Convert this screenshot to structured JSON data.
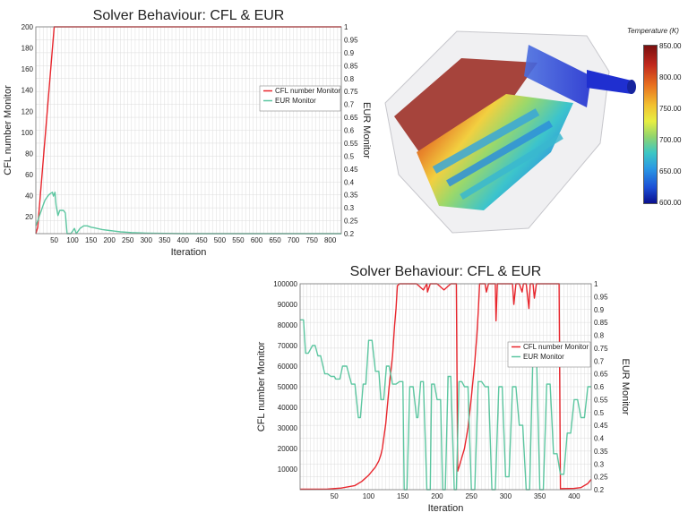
{
  "chart_data": [
    {
      "type": "line",
      "title": "Solver Behaviour: CFL & EUR",
      "xlabel": "Iteration",
      "ylabel": "CFL number Monitor",
      "y2label": "EUR Monitor",
      "xlim": [
        0,
        830
      ],
      "ylim": [
        4,
        200
      ],
      "y2lim": [
        0.2,
        1.0
      ],
      "xticks": [
        "50",
        "100",
        "150",
        "200",
        "250",
        "300",
        "350",
        "400",
        "450",
        "500",
        "550",
        "600",
        "650",
        "700",
        "750",
        "800"
      ],
      "xtick_values": [
        50,
        100,
        150,
        200,
        250,
        300,
        350,
        400,
        450,
        500,
        550,
        600,
        650,
        700,
        750,
        800
      ],
      "yticks": [
        "20",
        "40",
        "60",
        "80",
        "100",
        "120",
        "140",
        "160",
        "180",
        "200"
      ],
      "ytick_values": [
        20,
        40,
        60,
        80,
        100,
        120,
        140,
        160,
        180,
        200
      ],
      "y2ticks": [
        "0.2",
        "0.25",
        "0.3",
        "0.35",
        "0.4",
        "0.45",
        "0.5",
        "0.55",
        "0.6",
        "0.65",
        "0.7",
        "0.75",
        "0.8",
        "0.85",
        "0.9",
        "0.95",
        "1"
      ],
      "y2tick_values": [
        0.2,
        0.25,
        0.3,
        0.35,
        0.4,
        0.45,
        0.5,
        0.55,
        0.6,
        0.65,
        0.7,
        0.75,
        0.8,
        0.85,
        0.9,
        0.95,
        1.0
      ],
      "grid": true,
      "legend_position": "right",
      "series": [
        {
          "name": "CFL number Monitor",
          "axis": "left",
          "color": "#e8262d",
          "x": [
            0,
            5,
            50,
            830
          ],
          "y": [
            4,
            10,
            200,
            200
          ]
        },
        {
          "name": "EUR Monitor",
          "axis": "right",
          "color": "#5cc6a0",
          "x": [
            0,
            5,
            10,
            15,
            20,
            25,
            30,
            35,
            40,
            45,
            48,
            52,
            55,
            60,
            65,
            75,
            80,
            85,
            90,
            95,
            100,
            105,
            110,
            120,
            130,
            140,
            150,
            160,
            180,
            200,
            230,
            260,
            300,
            400,
            500,
            600,
            700,
            830
          ],
          "y": [
            0.23,
            0.25,
            0.27,
            0.29,
            0.31,
            0.33,
            0.34,
            0.35,
            0.355,
            0.36,
            0.345,
            0.36,
            0.31,
            0.27,
            0.29,
            0.29,
            0.28,
            0.2,
            0.2,
            0.2,
            0.21,
            0.22,
            0.2,
            0.22,
            0.23,
            0.23,
            0.225,
            0.222,
            0.216,
            0.212,
            0.207,
            0.204,
            0.202,
            0.2,
            0.2,
            0.2,
            0.2,
            0.2
          ]
        }
      ]
    },
    {
      "type": "line",
      "title": "Solver Behaviour: CFL & EUR",
      "xlabel": "Iteration",
      "ylabel": "CFL number Monitor",
      "y2label": "EUR Monitor",
      "xlim": [
        0,
        425
      ],
      "ylim": [
        0,
        100000
      ],
      "y2lim": [
        0.2,
        1.0
      ],
      "xticks": [
        "50",
        "100",
        "150",
        "200",
        "250",
        "300",
        "350",
        "400"
      ],
      "xtick_values": [
        50,
        100,
        150,
        200,
        250,
        300,
        350,
        400
      ],
      "yticks": [
        "10000",
        "20000",
        "30000",
        "40000",
        "50000",
        "60000",
        "70000",
        "80000",
        "90000",
        "100000"
      ],
      "ytick_values": [
        10000,
        20000,
        30000,
        40000,
        50000,
        60000,
        70000,
        80000,
        90000,
        100000
      ],
      "y2ticks": [
        "0.2",
        "0.25",
        "0.3",
        "0.35",
        "0.4",
        "0.45",
        "0.5",
        "0.55",
        "0.6",
        "0.65",
        "0.7",
        "0.75",
        "0.8",
        "0.85",
        "0.9",
        "0.95",
        "1"
      ],
      "y2tick_values": [
        0.2,
        0.25,
        0.3,
        0.35,
        0.4,
        0.45,
        0.5,
        0.55,
        0.6,
        0.65,
        0.7,
        0.75,
        0.8,
        0.85,
        0.9,
        0.95,
        1.0
      ],
      "grid": true,
      "legend_position": "right",
      "series": [
        {
          "name": "CFL number Monitor",
          "axis": "left",
          "color": "#e8262d",
          "x": [
            0,
            40,
            60,
            80,
            90,
            100,
            105,
            110,
            115,
            118,
            120,
            125,
            130,
            135,
            138,
            140,
            142,
            145,
            150,
            160,
            170,
            180,
            185,
            186,
            190,
            200,
            210,
            220,
            228,
            230,
            232,
            240,
            245,
            250,
            255,
            258,
            260,
            262,
            265,
            270,
            272,
            275,
            280,
            285,
            286,
            288,
            290,
            300,
            310,
            312,
            315,
            320,
            324,
            326,
            330,
            334,
            336,
            340,
            342,
            345,
            350,
            360,
            370,
            378,
            380,
            382,
            400,
            410,
            420,
            425
          ],
          "y": [
            200,
            300,
            800,
            2000,
            4000,
            7000,
            9000,
            11000,
            14000,
            17000,
            20000,
            32000,
            50000,
            65000,
            80000,
            88000,
            99000,
            100000,
            100000,
            100000,
            100000,
            97000,
            100000,
            96000,
            100000,
            100000,
            97000,
            100000,
            100000,
            9000,
            11000,
            20000,
            30000,
            45000,
            62000,
            75000,
            86000,
            100000,
            100000,
            100000,
            96000,
            100000,
            100000,
            100000,
            82000,
            100000,
            100000,
            100000,
            100000,
            90000,
            100000,
            100000,
            96000,
            100000,
            100000,
            88000,
            100000,
            100000,
            93000,
            100000,
            100000,
            100000,
            100000,
            100000,
            400,
            500,
            600,
            1000,
            3000,
            5000
          ]
        },
        {
          "name": "EUR Monitor",
          "axis": "right",
          "color": "#5cc6a0",
          "x": [
            0,
            5,
            8,
            12,
            18,
            22,
            26,
            30,
            36,
            40,
            45,
            50,
            52,
            58,
            62,
            68,
            75,
            80,
            85,
            88,
            92,
            96,
            100,
            105,
            110,
            115,
            118,
            122,
            126,
            130,
            135,
            140,
            145,
            150,
            152,
            156,
            160,
            165,
            170,
            172,
            176,
            180,
            185,
            190,
            192,
            196,
            200,
            205,
            208,
            212,
            216,
            220,
            225,
            228,
            232,
            236,
            240,
            245,
            250,
            255,
            260,
            265,
            270,
            275,
            280,
            285,
            290,
            295,
            300,
            305,
            310,
            315,
            320,
            325,
            330,
            335,
            340,
            345,
            350,
            355,
            360,
            365,
            370,
            375,
            380,
            385,
            390,
            395,
            400,
            405,
            410,
            415,
            420,
            425
          ],
          "y": [
            0.86,
            0.86,
            0.73,
            0.73,
            0.76,
            0.76,
            0.72,
            0.72,
            0.65,
            0.65,
            0.64,
            0.64,
            0.63,
            0.63,
            0.68,
            0.68,
            0.61,
            0.61,
            0.48,
            0.48,
            0.61,
            0.61,
            0.78,
            0.78,
            0.66,
            0.66,
            0.55,
            0.55,
            0.68,
            0.68,
            0.61,
            0.61,
            0.62,
            0.62,
            0.2,
            0.2,
            0.6,
            0.6,
            0.48,
            0.48,
            0.62,
            0.62,
            0.2,
            0.2,
            0.61,
            0.61,
            0.55,
            0.55,
            0.2,
            0.2,
            0.64,
            0.64,
            0.2,
            0.2,
            0.62,
            0.62,
            0.6,
            0.6,
            0.2,
            0.2,
            0.62,
            0.62,
            0.6,
            0.6,
            0.2,
            0.2,
            0.6,
            0.6,
            0.25,
            0.25,
            0.6,
            0.6,
            0.45,
            0.45,
            0.2,
            0.2,
            0.74,
            0.74,
            0.2,
            0.2,
            0.61,
            0.61,
            0.34,
            0.34,
            0.26,
            0.26,
            0.42,
            0.42,
            0.55,
            0.55,
            0.48,
            0.48,
            0.6,
            0.6
          ]
        }
      ]
    }
  ],
  "render": {
    "colorbar_title": "Temperature (K)",
    "colorbar_ticks": [
      "850.00",
      "800.00",
      "750.00",
      "700.00",
      "650.00",
      "600.00"
    ],
    "colors": [
      "#7a0f0f",
      "#c0281d",
      "#e8701f",
      "#f2c230",
      "#e7ee42",
      "#8fd46f",
      "#3cc7c4",
      "#2a98e4",
      "#1c4fd6",
      "#0a108f"
    ]
  }
}
